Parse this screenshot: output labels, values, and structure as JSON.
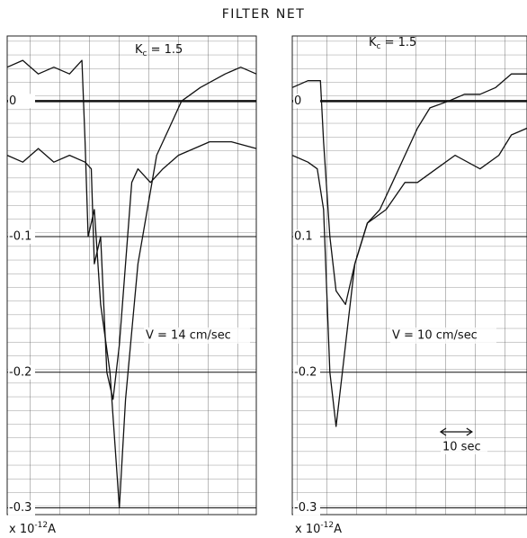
{
  "title": "FILTER NET",
  "chart_data": [
    {
      "type": "line",
      "annotation_k": {
        "main": "K",
        "sub": "c",
        "rest": " = 1.5"
      },
      "annotation_v": "V = 14 cm/sec",
      "unit_label": {
        "prefix": "x 10",
        "exponent": "-12",
        "suffix": "A"
      },
      "xlim": [
        0,
        80
      ],
      "ylim": [
        -0.305,
        0.048
      ],
      "yticks": [
        0,
        -0.1,
        -0.2,
        -0.3
      ],
      "series": [
        {
          "color": "#111111",
          "x": [
            0,
            5,
            10,
            15,
            20,
            24,
            25,
            26,
            28,
            30,
            33,
            36,
            38,
            40,
            42,
            45,
            48,
            52,
            56,
            62,
            70,
            75,
            80
          ],
          "values": [
            0.025,
            0.03,
            0.02,
            0.025,
            0.02,
            0.03,
            -0.03,
            -0.1,
            -0.08,
            -0.15,
            -0.2,
            -0.3,
            -0.22,
            -0.17,
            -0.12,
            -0.08,
            -0.04,
            -0.02,
            0,
            0.01,
            0.02,
            0.025,
            0.02
          ]
        },
        {
          "color": "#111111",
          "x": [
            0,
            5,
            10,
            15,
            20,
            25,
            27,
            28,
            30,
            32,
            34,
            36,
            38,
            40,
            42,
            46,
            50,
            55,
            60,
            65,
            72,
            80
          ],
          "values": [
            -0.04,
            -0.045,
            -0.035,
            -0.045,
            -0.04,
            -0.045,
            -0.05,
            -0.12,
            -0.1,
            -0.2,
            -0.22,
            -0.18,
            -0.12,
            -0.06,
            -0.05,
            -0.06,
            -0.05,
            -0.04,
            -0.035,
            -0.03,
            -0.03,
            -0.035
          ]
        }
      ]
    },
    {
      "type": "line",
      "annotation_k": {
        "main": "K",
        "sub": "c",
        "rest": " = 1.5"
      },
      "annotation_v": "V = 10 cm/sec",
      "unit_label": {
        "prefix": "x 10",
        "exponent": "-12",
        "suffix": "A"
      },
      "scale_bar": {
        "label": "10 sec",
        "seconds": 10
      },
      "xlim": [
        0,
        75
      ],
      "ylim": [
        -0.305,
        0.048
      ],
      "yticks": [
        0,
        {
          "value": -0.1,
          "label": "0.1"
        },
        -0.2,
        -0.3
      ],
      "series": [
        {
          "color": "#111111",
          "x": [
            0,
            5,
            9,
            10,
            12,
            14,
            17,
            20,
            24,
            28,
            32,
            36,
            40,
            44,
            50,
            55,
            60,
            65,
            70,
            75
          ],
          "values": [
            0.01,
            0.015,
            0.015,
            -0.03,
            -0.1,
            -0.14,
            -0.15,
            -0.12,
            -0.09,
            -0.08,
            -0.06,
            -0.04,
            -0.02,
            -0.005,
            0,
            0.005,
            0.005,
            0.01,
            0.02,
            0.02
          ]
        },
        {
          "color": "#111111",
          "x": [
            0,
            5,
            8,
            10,
            12,
            14,
            16,
            18,
            20,
            24,
            30,
            36,
            40,
            46,
            52,
            60,
            66,
            70,
            75
          ],
          "values": [
            -0.04,
            -0.045,
            -0.05,
            -0.08,
            -0.2,
            -0.24,
            -0.2,
            -0.16,
            -0.12,
            -0.09,
            -0.08,
            -0.06,
            -0.06,
            -0.05,
            -0.04,
            -0.05,
            -0.04,
            -0.025,
            -0.02
          ]
        }
      ]
    }
  ]
}
